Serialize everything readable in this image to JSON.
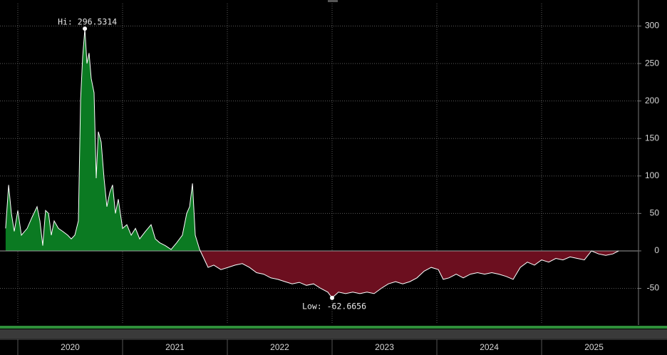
{
  "chart_data": {
    "type": "area",
    "x": [
      2019.884,
      2019.912,
      2019.939,
      2019.966,
      2020.0,
      2020.034,
      2020.089,
      2020.136,
      2020.184,
      2020.211,
      2020.238,
      2020.265,
      2020.293,
      2020.32,
      2020.347,
      2020.388,
      2020.429,
      2020.476,
      2020.51,
      2020.544,
      2020.578,
      2020.599,
      2020.619,
      2020.64,
      2020.66,
      2020.68,
      2020.701,
      2020.728,
      2020.748,
      2020.769,
      2020.796,
      2020.823,
      2020.85,
      2020.878,
      2020.905,
      2020.932,
      2020.959,
      2021.0,
      2021.041,
      2021.082,
      2021.123,
      2021.163,
      2021.218,
      2021.272,
      2021.313,
      2021.354,
      2021.408,
      2021.463,
      2021.517,
      2021.571,
      2021.612,
      2021.64,
      2021.667,
      2021.694,
      2021.735,
      2021.776,
      2021.816,
      2021.871,
      2021.939,
      2022.007,
      2022.075,
      2022.143,
      2022.211,
      2022.279,
      2022.347,
      2022.415,
      2022.483,
      2022.551,
      2022.619,
      2022.687,
      2022.755,
      2022.823,
      2022.891,
      2022.959,
      2023.0,
      2023.061,
      2023.129,
      2023.197,
      2023.265,
      2023.333,
      2023.401,
      2023.469,
      2023.537,
      2023.606,
      2023.674,
      2023.742,
      2023.81,
      2023.878,
      2023.946,
      2024.014,
      2024.061,
      2024.116,
      2024.184,
      2024.252,
      2024.32,
      2024.388,
      2024.456,
      2024.524,
      2024.592,
      2024.66,
      2024.728,
      2024.796,
      2024.864,
      2024.932,
      2025.0,
      2025.068,
      2025.136,
      2025.204,
      2025.272,
      2025.34,
      2025.408,
      2025.476,
      2025.544,
      2025.612,
      2025.68,
      2025.735
    ],
    "values": [
      30,
      88,
      50,
      26,
      54,
      21,
      30,
      45,
      59,
      40,
      7,
      54,
      50,
      21,
      40,
      30,
      26,
      21,
      16,
      21,
      40,
      202,
      259,
      296.5314,
      250,
      264,
      230,
      211,
      97,
      159,
      145,
      97,
      59,
      78,
      88,
      50,
      69,
      30,
      35,
      21,
      30,
      16,
      26,
      35,
      16,
      11,
      7,
      2,
      11,
      21,
      50,
      59,
      90,
      21,
      2,
      -10,
      -22,
      -19,
      -25,
      -22,
      -19,
      -17,
      -22,
      -29,
      -31,
      -36,
      -38,
      -41,
      -44,
      -42,
      -46,
      -44,
      -50,
      -55,
      -62.6656,
      -55,
      -57,
      -55,
      -57,
      -55,
      -57,
      -50,
      -44,
      -41,
      -44,
      -41,
      -36,
      -27,
      -22,
      -25,
      -38,
      -36,
      -31,
      -36,
      -31,
      -29,
      -31,
      -29,
      -31,
      -34,
      -38,
      -22,
      -15,
      -19,
      -12,
      -15,
      -10,
      -12,
      -8,
      -10,
      -12,
      0,
      -4,
      -6,
      -4,
      0
    ],
    "positive_color": "#0b7a22",
    "negative_color": "#6c0f1f",
    "line_color": "#ffffff",
    "xlim": [
      2019.83,
      2025.918
    ],
    "xticks": [
      2020,
      2021,
      2022,
      2023,
      2024,
      2025
    ],
    "ylim": [
      -98,
      330
    ],
    "yticks": [
      300,
      250,
      200,
      150,
      100,
      50,
      0,
      -50
    ],
    "grid": true,
    "annotations": [
      {
        "text": "Hi: 296.5314",
        "x": 2020.64,
        "y": 296.5314
      },
      {
        "text": "Low: -62.6656",
        "x": 2023.0,
        "y": -62.6656
      }
    ]
  }
}
